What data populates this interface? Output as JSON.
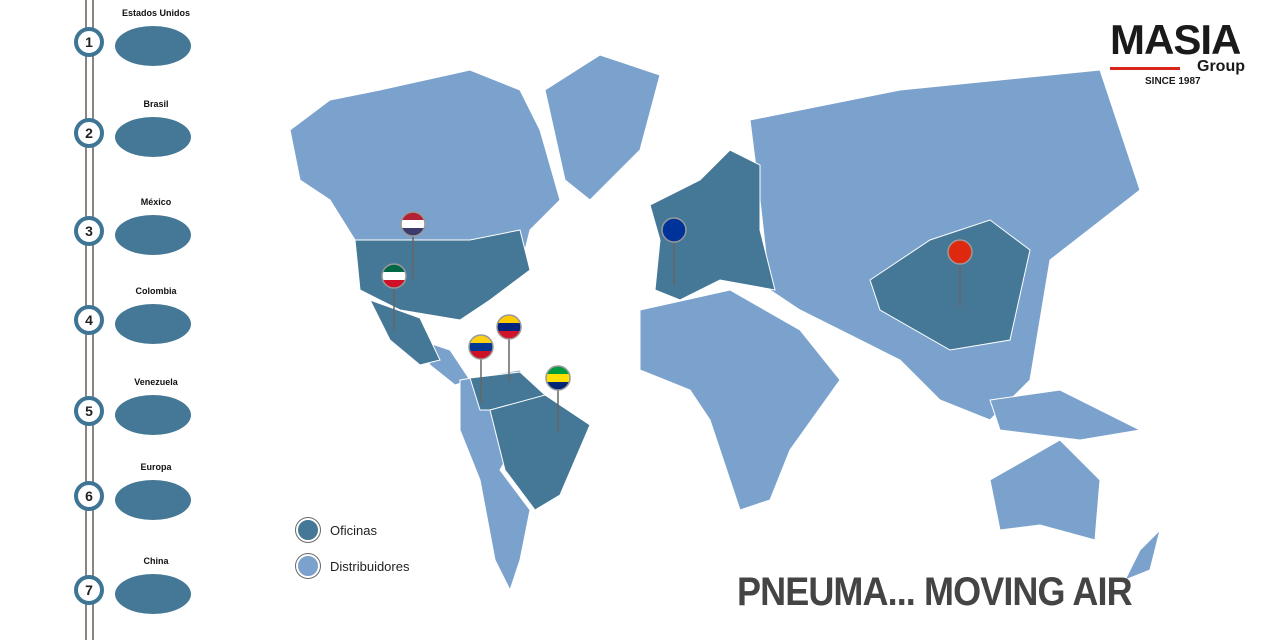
{
  "logo": {
    "name": "MASIA",
    "sub": "Group",
    "since": "SINCE 1987"
  },
  "slogan": "PNEUMA... MOVING AIR",
  "colors": {
    "offices": "#447896",
    "distributors": "#7ba2cd",
    "rail": "#8a8580",
    "accent": "#d9251c"
  },
  "legend": [
    {
      "label": "Oficinas",
      "color": "#447896"
    },
    {
      "label": "Distribuidores",
      "color": "#7ba2cd"
    }
  ],
  "countries": [
    {
      "num": "1",
      "name": "Estados Unidos",
      "flag": "us-flag"
    },
    {
      "num": "2",
      "name": "Brasil",
      "flag": "brazil-flag"
    },
    {
      "num": "3",
      "name": "México",
      "flag": "mexico-flag"
    },
    {
      "num": "4",
      "name": "Colombia",
      "flag": "colombia-flag"
    },
    {
      "num": "5",
      "name": "Venezuela",
      "flag": "venezuela-flag"
    },
    {
      "num": "6",
      "name": "Europa",
      "flag": "eu-flag"
    },
    {
      "num": "7",
      "name": "China",
      "flag": "china-flag"
    }
  ]
}
